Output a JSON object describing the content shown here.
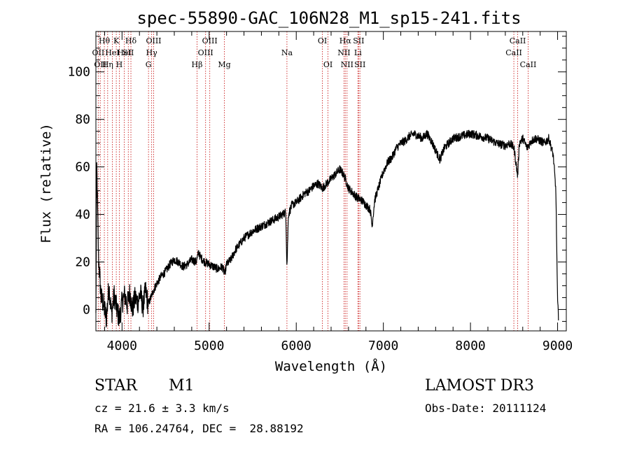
{
  "chart_data": {
    "type": "line",
    "title": "spec-55890-GAC_106N28_M1_sp15-241.fits",
    "xlabel": "Wavelength (Å)",
    "ylabel": "Flux (relative)",
    "xlim": [
      3700,
      9100
    ],
    "ylim": [
      -9,
      117
    ],
    "x_ticks": [
      4000,
      5000,
      6000,
      7000,
      8000,
      9000
    ],
    "x_tick_labels": [
      "4000",
      "5000",
      "6000",
      "7000",
      "8000",
      "9000"
    ],
    "y_ticks": [
      0,
      20,
      40,
      60,
      80,
      100
    ],
    "y_tick_labels": [
      "0",
      "20",
      "40",
      "60",
      "80",
      "100"
    ],
    "grid": false,
    "line_color": "#000000",
    "marker_color": "#cc2222",
    "series": [
      {
        "name": "flux",
        "x": [
          3700,
          3710,
          3730,
          3760,
          3790,
          3820,
          3850,
          3880,
          3910,
          3940,
          3970,
          4000,
          4030,
          4060,
          4090,
          4120,
          4150,
          4180,
          4210,
          4240,
          4270,
          4300,
          4330,
          4360,
          4400,
          4450,
          4500,
          4550,
          4600,
          4650,
          4700,
          4750,
          4800,
          4850,
          4880,
          4900,
          4950,
          5000,
          5050,
          5100,
          5150,
          5180,
          5200,
          5250,
          5300,
          5400,
          5500,
          5600,
          5700,
          5800,
          5880,
          5893,
          5910,
          5950,
          6000,
          6050,
          6100,
          6150,
          6200,
          6250,
          6300,
          6350,
          6400,
          6450,
          6500,
          6540,
          6563,
          6600,
          6650,
          6700,
          6750,
          6800,
          6850,
          6870,
          6900,
          6950,
          7000,
          7050,
          7100,
          7150,
          7200,
          7250,
          7300,
          7350,
          7400,
          7450,
          7500,
          7550,
          7600,
          7650,
          7700,
          7750,
          7800,
          7900,
          8000,
          8100,
          8200,
          8300,
          8400,
          8450,
          8500,
          8542,
          8560,
          8600,
          8650,
          8700,
          8750,
          8800,
          8850,
          8900,
          8950,
          8980,
          9000,
          9010
        ],
        "y": [
          -3,
          60,
          22,
          5,
          2,
          -4,
          10,
          -2,
          6,
          0,
          -4,
          3,
          6,
          2,
          7,
          0,
          5,
          3,
          7,
          1,
          8,
          2,
          5,
          8,
          11,
          14,
          16,
          19,
          21,
          20,
          18,
          19,
          21,
          20,
          24,
          22,
          20,
          19,
          18,
          17,
          18,
          15,
          19,
          21,
          25,
          30,
          33,
          35,
          37,
          39,
          41,
          18,
          40,
          44,
          45,
          47,
          49,
          50,
          52,
          53,
          51,
          53,
          55,
          57,
          59,
          57,
          55,
          51,
          49,
          47,
          46,
          44,
          42,
          35,
          46,
          52,
          58,
          62,
          64,
          68,
          70,
          71,
          73,
          74,
          73,
          72,
          74,
          71,
          67,
          63,
          68,
          70,
          72,
          73,
          74,
          73,
          72,
          70,
          69,
          70,
          68,
          56,
          70,
          72,
          68,
          71,
          72,
          71,
          70,
          72,
          65,
          50,
          3,
          -3
        ]
      }
    ],
    "lines": [
      {
        "wavelength": 3727,
        "label": "OII",
        "row": 2
      },
      {
        "wavelength": 3750,
        "label": "OII",
        "row": 3
      },
      {
        "wavelength": 3797,
        "label": "Hθ",
        "row": 1
      },
      {
        "wavelength": 3835,
        "label": "Hη",
        "row": 3
      },
      {
        "wavelength": 3889,
        "label": "HeI",
        "row": 2
      },
      {
        "wavelength": 3934,
        "label": "K",
        "row": 1
      },
      {
        "wavelength": 3969,
        "label": "H",
        "row": 3
      },
      {
        "wavelength": 4026,
        "label": "HeI",
        "row": 2
      },
      {
        "wavelength": 4072,
        "label": "SII",
        "row": 2
      },
      {
        "wavelength": 4102,
        "label": "Hδ",
        "row": 1
      },
      {
        "wavelength": 4304,
        "label": "G",
        "row": 3
      },
      {
        "wavelength": 4340,
        "label": "Hγ",
        "row": 2
      },
      {
        "wavelength": 4363,
        "label": "OIII",
        "row": 1
      },
      {
        "wavelength": 4861,
        "label": "Hβ",
        "row": 3
      },
      {
        "wavelength": 4959,
        "label": "OIII",
        "row": 2
      },
      {
        "wavelength": 5007,
        "label": "OIII",
        "row": 1
      },
      {
        "wavelength": 5175,
        "label": "Mg",
        "row": 3
      },
      {
        "wavelength": 5893,
        "label": "Na",
        "row": 2
      },
      {
        "wavelength": 6300,
        "label": "OI",
        "row": 1
      },
      {
        "wavelength": 6364,
        "label": "OI",
        "row": 3
      },
      {
        "wavelength": 6548,
        "label": "NII",
        "row": 2
      },
      {
        "wavelength": 6563,
        "label": "Hα",
        "row": 1
      },
      {
        "wavelength": 6583,
        "label": "NII",
        "row": 3
      },
      {
        "wavelength": 6708,
        "label": "Li",
        "row": 2
      },
      {
        "wavelength": 6716,
        "label": "SII",
        "row": 1
      },
      {
        "wavelength": 6731,
        "label": "SII",
        "row": 3
      },
      {
        "wavelength": 8498,
        "label": "CaII",
        "row": 2
      },
      {
        "wavelength": 8542,
        "label": "CaII",
        "row": 1
      },
      {
        "wavelength": 8662,
        "label": "CaII",
        "row": 3
      }
    ]
  },
  "info": {
    "object_class": "STAR",
    "subclass": "M1",
    "survey": "LAMOST DR3",
    "redshift": "cz = 21.6 ± 3.3 km/s",
    "obs_date": "Obs-Date: 20111124",
    "coords": "RA = 106.24764, DEC =  28.88192"
  }
}
